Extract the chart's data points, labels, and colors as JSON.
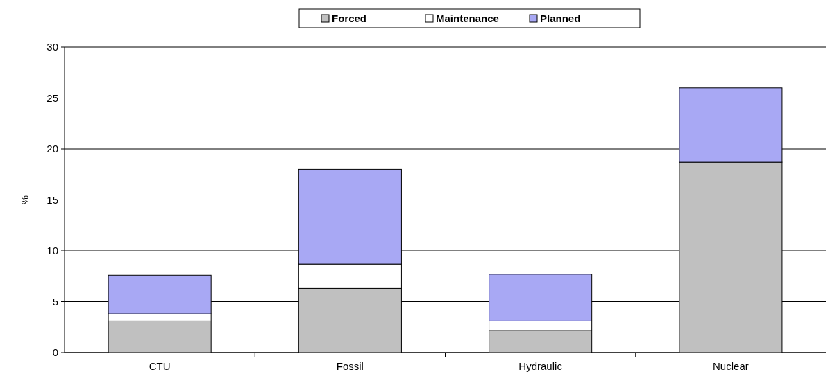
{
  "chart_data": {
    "type": "bar",
    "stacked": true,
    "ylabel": "%",
    "categories": [
      "CTU",
      "Fossil",
      "Hydraulic",
      "Nuclear"
    ],
    "series": [
      {
        "name": "Forced",
        "color": "#c0c0c0",
        "values": [
          3.1,
          6.3,
          2.2,
          18.7
        ]
      },
      {
        "name": "Maintenance",
        "color": "#ffffff",
        "values": [
          0.7,
          2.4,
          0.9,
          0
        ]
      },
      {
        "name": "Planned",
        "color": "#a8a8f4",
        "values": [
          3.8,
          9.3,
          4.6,
          7.3
        ]
      }
    ],
    "ylim": [
      0,
      30
    ],
    "yticks": [
      0,
      5,
      10,
      15,
      20,
      25,
      30
    ],
    "grid": "y",
    "legend": "top"
  }
}
